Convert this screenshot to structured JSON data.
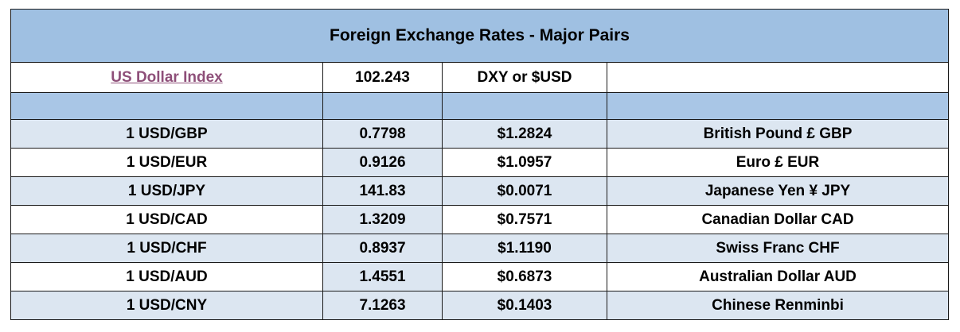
{
  "title": "Foreign Exchange Rates - Major Pairs",
  "index_row": {
    "label": "US Dollar Index",
    "value": "102.243",
    "symbol": "DXY or $USD",
    "note": ""
  },
  "rows": [
    {
      "pair": "1 USD/GBP",
      "rate": "0.7798",
      "inverse": "$1.2824",
      "currency": "British Pound £ GBP"
    },
    {
      "pair": "1 USD/EUR",
      "rate": "0.9126",
      "inverse": "$1.0957",
      "currency": "Euro £ EUR"
    },
    {
      "pair": "1 USD/JPY",
      "rate": "141.83",
      "inverse": "$0.0071",
      "currency": "Japanese Yen ¥ JPY"
    },
    {
      "pair": "1 USD/CAD",
      "rate": "1.3209",
      "inverse": "$0.7571",
      "currency": "Canadian Dollar CAD"
    },
    {
      "pair": "1 USD/CHF",
      "rate": "0.8937",
      "inverse": "$1.1190",
      "currency": "Swiss Franc CHF"
    },
    {
      "pair": "1 USD/AUD",
      "rate": "1.4551",
      "inverse": "$0.6873",
      "currency": "Australian Dollar AUD"
    },
    {
      "pair": "1 USD/CNY",
      "rate": "7.1263",
      "inverse": "$0.1403",
      "currency": "Chinese Renminbi"
    }
  ],
  "colors": {
    "title_bg": "#9fc0e2",
    "blank_bg": "#a9c6e6",
    "shaded_row_bg": "#dce6f1",
    "link": "#8e4f79",
    "border": "#1a1a1a"
  }
}
